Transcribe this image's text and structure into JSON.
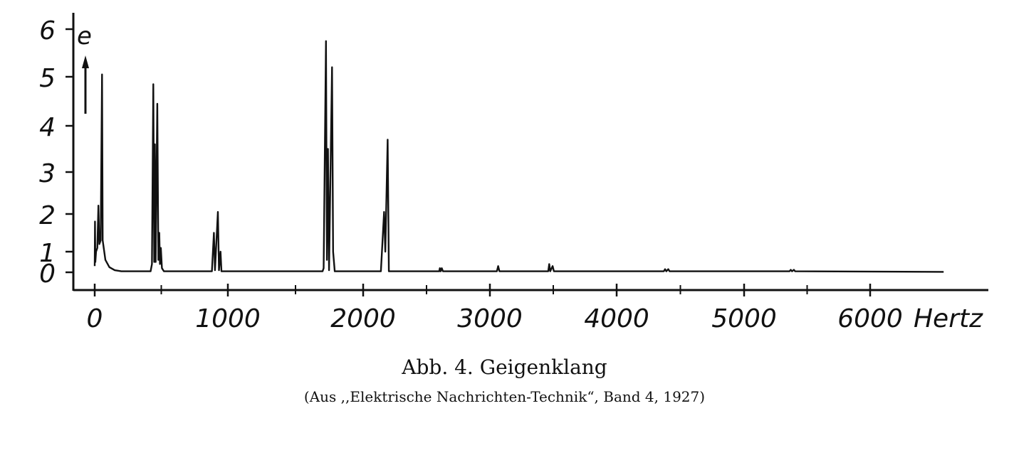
{
  "chart_data": {
    "type": "line",
    "title": "Abb. 4. Geigenklang",
    "subtitle": "(Aus ,,Elektrische Nachrichten-Technik“, Band 4, 1927)",
    "xlabel": "Hertz",
    "ylabel": "e",
    "xlim": [
      -100,
      6900
    ],
    "ylim": [
      -0.4,
      6.2
    ],
    "x_ticks": [
      "0",
      "1000",
      "2000",
      "3000",
      "4000",
      "5000",
      "6000"
    ],
    "y_ticks": [
      "0",
      "1",
      "2",
      "3",
      "4",
      "5",
      "6"
    ],
    "grid": false,
    "series": [
      {
        "x": [
          0,
          2,
          5,
          10,
          20,
          28,
          35,
          45,
          55,
          60,
          80,
          110,
          150,
          200,
          420,
          430,
          440,
          447,
          452,
          458,
          470,
          478,
          485,
          490,
          497,
          505,
          520,
          880,
          895,
          903,
          925,
          933,
          945,
          952,
          1700,
          1708,
          1725,
          1732,
          1740,
          1748,
          1770,
          1778,
          1790,
          2140,
          2165,
          2175,
          2193,
          2203,
          2600,
          2605,
          2612,
          2620,
          2630,
          3055,
          3065,
          3075,
          3460,
          3468,
          3476,
          3495,
          3505,
          4370,
          4380,
          4390,
          4405,
          4415,
          5360,
          5370,
          5380,
          5395,
          5405,
          6580
        ],
        "y": [
          0.3,
          1.8,
          0.5,
          1.0,
          1.1,
          2.2,
          1.2,
          1.3,
          5.05,
          1.3,
          0.6,
          0.25,
          0.1,
          0.05,
          0.05,
          0.4,
          4.85,
          0.5,
          3.6,
          0.5,
          4.45,
          0.6,
          1.5,
          0.4,
          1.1,
          0.2,
          0.05,
          0.05,
          1.5,
          0.1,
          2.05,
          0.1,
          1.0,
          0.05,
          0.05,
          0.2,
          5.75,
          0.6,
          3.5,
          0.1,
          5.2,
          1.0,
          0.05,
          0.05,
          2.05,
          1.0,
          3.7,
          0.05,
          0.05,
          0.2,
          0.05,
          0.2,
          0.05,
          0.05,
          0.3,
          0.05,
          0.05,
          0.4,
          0.05,
          0.3,
          0.05,
          0.05,
          0.15,
          0.05,
          0.15,
          0.05,
          0.05,
          0.12,
          0.05,
          0.12,
          0.05,
          0.02
        ]
      }
    ]
  }
}
